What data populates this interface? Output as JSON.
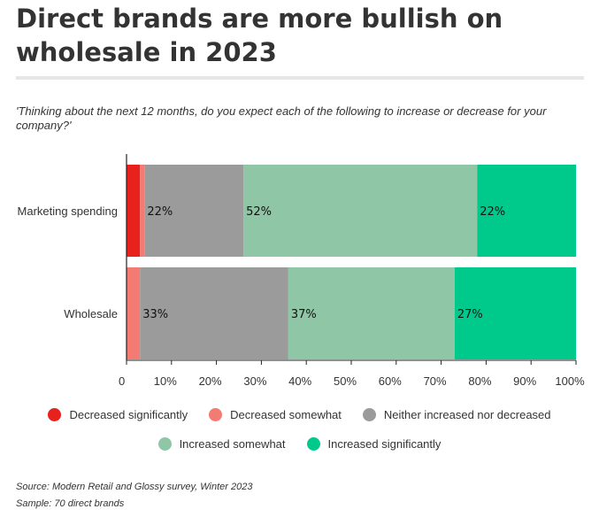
{
  "title": "Direct brands are more bullish on wholesale in 2023",
  "subtitle": "'Thinking about the next 12 months, do you expect each of the following to increase or decrease for your company?'",
  "source": "Source: Modern Retail and Glossy survey, Winter 2023",
  "sample": "Sample: 70 direct brands",
  "chart_data": {
    "type": "bar",
    "orientation": "horizontal",
    "stacked": true,
    "categories": [
      "Marketing spending",
      "Wholesale"
    ],
    "series": [
      {
        "name": "Decreased significantly",
        "color": "#e8211d",
        "values": [
          3,
          0
        ]
      },
      {
        "name": "Decreased somewhat",
        "color": "#f47b73",
        "values": [
          1,
          3
        ]
      },
      {
        "name": "Neither increased nor decreased",
        "color": "#9b9b9b",
        "values": [
          22,
          33
        ]
      },
      {
        "name": "Increased somewhat",
        "color": "#8fc6a6",
        "values": [
          52,
          37
        ]
      },
      {
        "name": "Increased significantly",
        "color": "#00c98c",
        "values": [
          22,
          27
        ]
      }
    ],
    "segment_labels": [
      [
        "",
        "",
        "22%",
        "52%",
        "22%"
      ],
      [
        "",
        "",
        "33%",
        "37%",
        "27%"
      ]
    ],
    "x_ticks": [
      0,
      10,
      20,
      30,
      40,
      50,
      60,
      70,
      80,
      90,
      100
    ],
    "x_tick_labels": [
      "0",
      "10%",
      "20%",
      "30%",
      "40%",
      "50%",
      "60%",
      "70%",
      "80%",
      "90%",
      "100%"
    ],
    "xlim": [
      0,
      100
    ],
    "grid": false,
    "legend_position": "bottom"
  }
}
